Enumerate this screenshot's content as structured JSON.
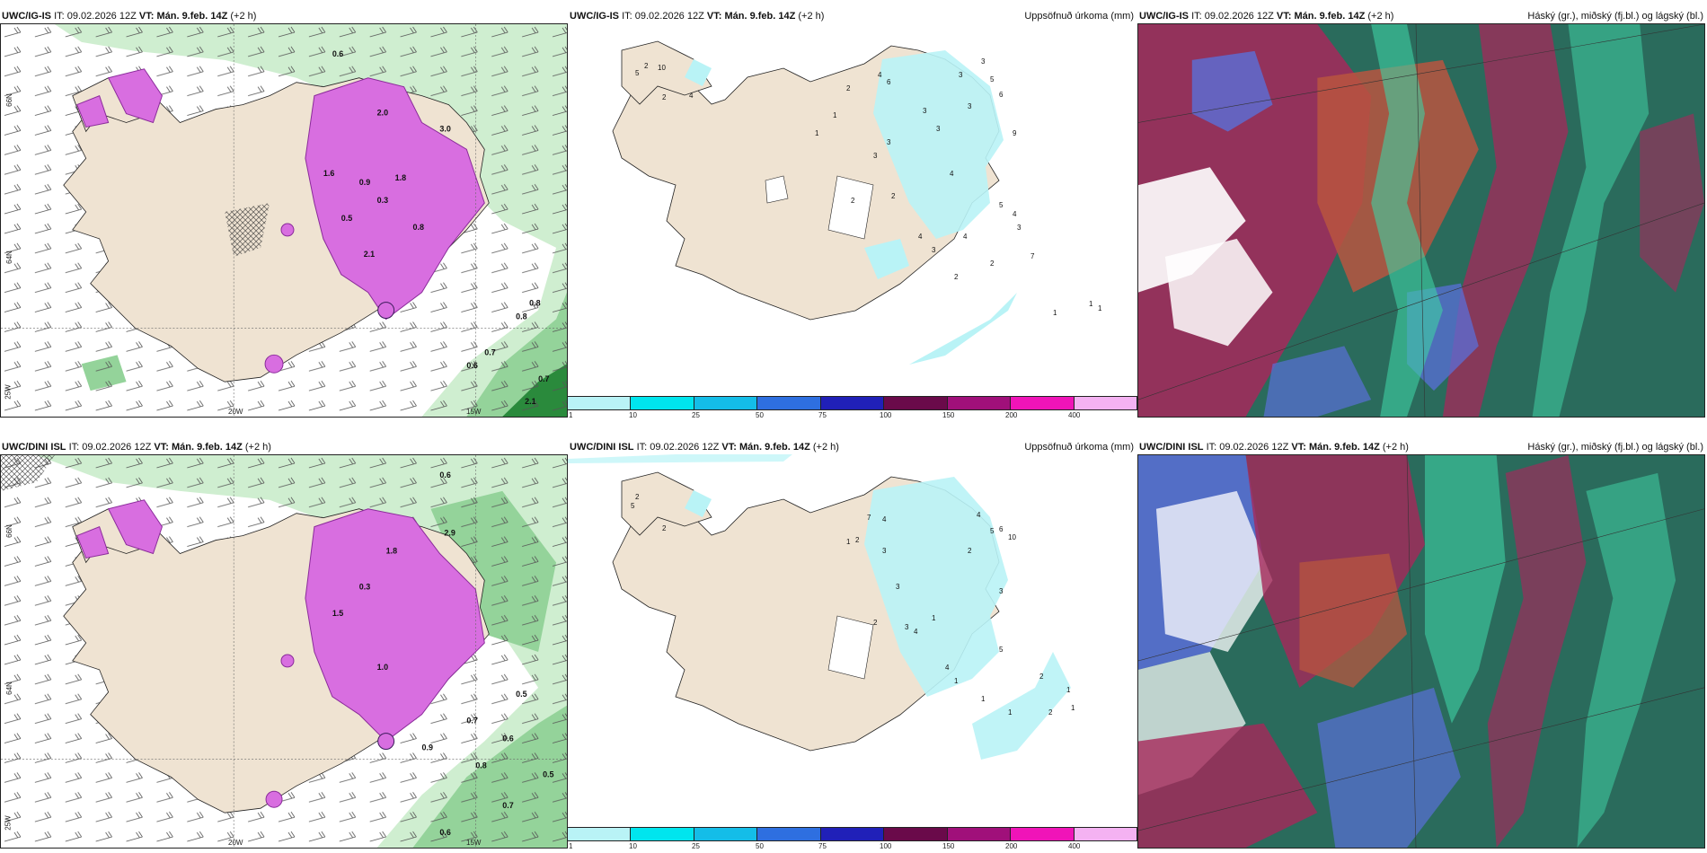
{
  "top": {
    "left_title": {
      "model": "UWC/IG-IS",
      "it_label": "IT:",
      "it_value": "09.02.2026 12Z",
      "vt_label": "VT:",
      "vt_value": "Mán. 9.feb. 14Z",
      "lead": "(+2 h)"
    },
    "mid_title": {
      "model": "UWC/IG-IS",
      "it_label": "IT:",
      "it_value": "09.02.2026 12Z",
      "vt_label": "VT:",
      "vt_value": "Mán. 9.feb. 14Z",
      "lead": "(+2 h)",
      "right": "Uppsöfnuð úrkoma (mm)"
    },
    "right_title": {
      "model": "UWC/IG-IS",
      "it_label": "IT:",
      "it_value": "09.02.2026 12Z",
      "vt_label": "VT:",
      "vt_value": "Mán. 9.feb. 14Z",
      "lead": "(+2 h)",
      "right": "Háský (gr.), miðský (fj.bl.) og lágský (bl.)"
    }
  },
  "bottom": {
    "left_title": {
      "model": "UWC/DINI ISL",
      "it_label": "IT:",
      "it_value": "09.02.2026 12Z",
      "vt_label": "VT:",
      "vt_value": "Mán. 9.feb. 14Z",
      "lead": "(+2 h)"
    },
    "mid_title": {
      "model": "UWC/DINI ISL",
      "it_label": "IT:",
      "it_value": "09.02.2026 12Z",
      "vt_label": "VT:",
      "vt_value": "Mán. 9.feb. 14Z",
      "lead": "(+2 h)",
      "right": "Uppsöfnuð úrkoma (mm)"
    },
    "right_title": {
      "model": "UWC/DINI ISL",
      "it_label": "IT:",
      "it_value": "09.02.2026 12Z",
      "vt_label": "VT:",
      "vt_value": "Mán. 9.feb. 14Z",
      "lead": "(+2 h)",
      "right": "Háský (gr.), miðský (fj.bl.) og lágský (bl.)"
    }
  },
  "axes": {
    "lat_66": "66N",
    "lat_64": "64N",
    "lon_20": "20W",
    "lon_15": "15W",
    "lon_25": "25W"
  },
  "legend": {
    "ticks": [
      "1",
      "10",
      "25",
      "50",
      "75",
      "100",
      "150",
      "200",
      "400"
    ],
    "colors": [
      "#b9f3f6",
      "#00e5ee",
      "#14bde8",
      "#2e6fe0",
      "#2020b8",
      "#6a0a4a",
      "#a0107a",
      "#f014b8",
      "#f4b2f2"
    ]
  },
  "precip_labels_top": [
    "2",
    "5",
    "10",
    "2",
    "4",
    "4",
    "6",
    "2",
    "3",
    "1",
    "1",
    "3",
    "4",
    "3",
    "3",
    "5",
    "6",
    "9",
    "3",
    "3",
    "3",
    "2",
    "2",
    "4",
    "3",
    "4",
    "5",
    "4",
    "2",
    "2",
    "3",
    "7",
    "1",
    "1",
    "1"
  ],
  "precip_labels_bottom": [
    "2",
    "5",
    "2",
    "1",
    "2",
    "4",
    "7",
    "3",
    "3",
    "4",
    "5",
    "6",
    "2",
    "2",
    "3",
    "4",
    "1",
    "10",
    "3",
    "4",
    "1",
    "5",
    "2",
    "2",
    "1",
    "1",
    "1",
    "1"
  ],
  "snow_labels_top": [
    "0.6",
    "2.0",
    "1.8",
    "3.0",
    "0.8",
    "0.9",
    "1.6",
    "0.5",
    "2.1",
    "0.3",
    "0.8",
    "0.7",
    "0.6",
    "0.8",
    "0.7",
    "2.1"
  ],
  "snow_labels_bottom": [
    "0.6",
    "1.8",
    "2.9",
    "0.5",
    "1.5",
    "1.0",
    "0.3",
    "0.9",
    "0.7",
    "0.6",
    "0.8",
    "0.5",
    "0.6",
    "0.7"
  ],
  "colors": {
    "land": "#efe3d2",
    "snow": "#d86ee0",
    "snow_dark": "#8a2b9a",
    "green_light": "#cfeed0",
    "green": "#94d39a",
    "green_dark": "#2a8a3c",
    "cloud_high": "#3fd0a4",
    "cloud_mid": "#a6285a",
    "cloud_low": "#5a6fd8",
    "cloud_base": "#2a6b5c"
  }
}
